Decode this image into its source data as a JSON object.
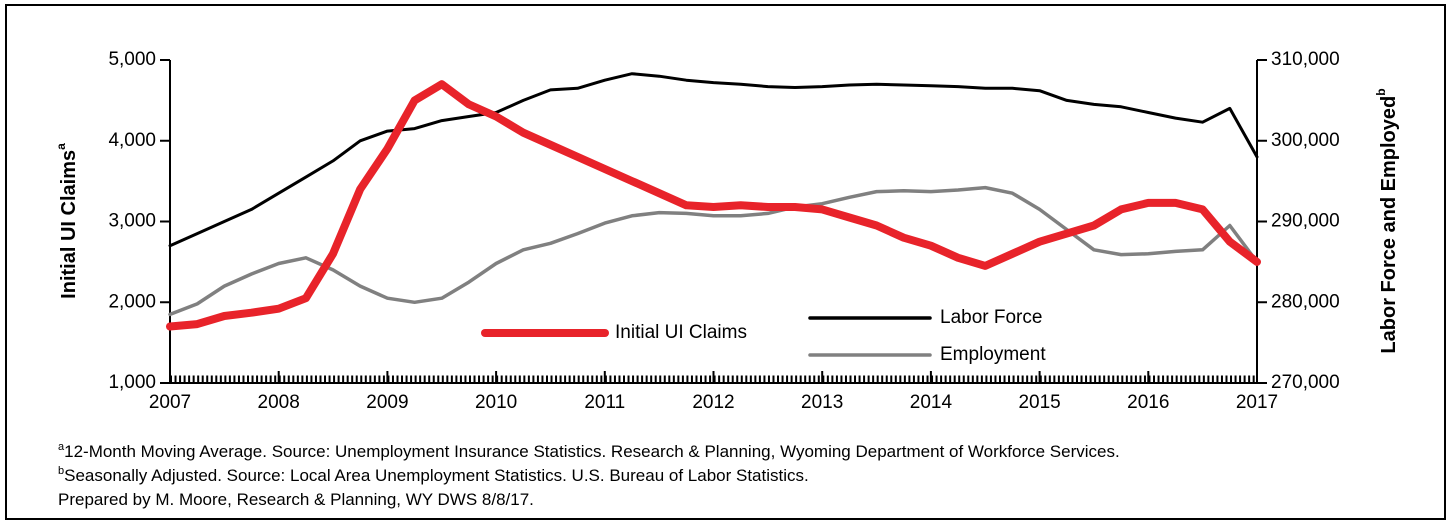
{
  "chart_data": {
    "type": "line",
    "y_label": "Initial UI Claims",
    "y_label_marker": "a",
    "y2_label": "Labor Force and Employed",
    "y2_label_marker": "b",
    "x": [
      2007,
      2007.25,
      2007.5,
      2007.75,
      2008,
      2008.25,
      2008.5,
      2008.75,
      2009,
      2009.25,
      2009.5,
      2009.75,
      2010,
      2010.25,
      2010.5,
      2010.75,
      2011,
      2011.25,
      2011.5,
      2011.75,
      2012,
      2012.25,
      2012.5,
      2012.75,
      2013,
      2013.25,
      2013.5,
      2013.75,
      2014,
      2014.25,
      2014.5,
      2014.75,
      2015,
      2015.25,
      2015.5,
      2015.75,
      2016,
      2016.25,
      2016.5,
      2016.75,
      2017
    ],
    "series": [
      {
        "name": "Initial UI Claims",
        "color": "#e8232a",
        "axis": "y",
        "values": [
          1700,
          1730,
          1830,
          1870,
          1920,
          2050,
          2600,
          3400,
          3900,
          4500,
          4700,
          4450,
          4300,
          4100,
          3950,
          3800,
          3650,
          3500,
          3350,
          3200,
          3180,
          3200,
          3180,
          3180,
          3150,
          3050,
          2950,
          2800,
          2700,
          2550,
          2450,
          2600,
          2750,
          2850,
          2950,
          3150,
          3230,
          3230,
          3150,
          2750,
          2500
        ]
      },
      {
        "name": "Labor Force",
        "color": "#000000",
        "axis": "y2",
        "values": [
          287000,
          288500,
          290000,
          291500,
          293500,
          295500,
          297500,
          300000,
          301200,
          301500,
          302500,
          303000,
          303500,
          305000,
          306300,
          306500,
          307500,
          308300,
          308000,
          307500,
          307200,
          307000,
          306700,
          306600,
          306700,
          306900,
          307000,
          306900,
          306800,
          306700,
          306500,
          306500,
          306200,
          305000,
          304500,
          304200,
          303500,
          302800,
          302300,
          304000,
          298000
        ]
      },
      {
        "name": "Employment",
        "color": "#808080",
        "axis": "y2",
        "values": [
          278500,
          279800,
          282000,
          283500,
          284800,
          285500,
          284000,
          282000,
          280500,
          280000,
          280500,
          282500,
          284800,
          286500,
          287300,
          288500,
          289800,
          290700,
          291100,
          291000,
          290700,
          290700,
          291000,
          291800,
          292200,
          293000,
          293700,
          293800,
          293700,
          293900,
          294200,
          293500,
          291500,
          289000,
          286500,
          285900,
          286000,
          286300,
          286500,
          289500,
          285000
        ]
      }
    ],
    "xlim": [
      2007,
      2017
    ],
    "xticks": [
      2007,
      2008,
      2009,
      2010,
      2011,
      2012,
      2013,
      2014,
      2015,
      2016,
      2017
    ],
    "ylim": [
      1000,
      5000
    ],
    "yticks": [
      {
        "value": 1000,
        "label": "1,000"
      },
      {
        "value": 2000,
        "label": "2,000"
      },
      {
        "value": 3000,
        "label": "3,000"
      },
      {
        "value": 4000,
        "label": "4,000"
      },
      {
        "value": 5000,
        "label": "5,000"
      }
    ],
    "y2lim": [
      270000,
      310000
    ],
    "y2ticks": [
      {
        "value": 270000,
        "label": "270,000"
      },
      {
        "value": 280000,
        "label": "280,000"
      },
      {
        "value": 290000,
        "label": "290,000"
      },
      {
        "value": 300000,
        "label": "300,000"
      },
      {
        "value": 310000,
        "label": "310,000"
      }
    ],
    "notes": [
      {
        "marker": "a",
        "text": "12-Month Moving Average. Source: Unemployment Insurance Statistics. Research & Planning, Wyoming Department of Workforce Services."
      },
      {
        "marker": "b",
        "text": "Seasonally Adjusted. Source: Local Area Unemployment Statistics. U.S. Bureau of Labor Statistics."
      },
      {
        "text": "Prepared by M. Moore, Research & Planning, WY DWS 8/8/17."
      }
    ]
  }
}
